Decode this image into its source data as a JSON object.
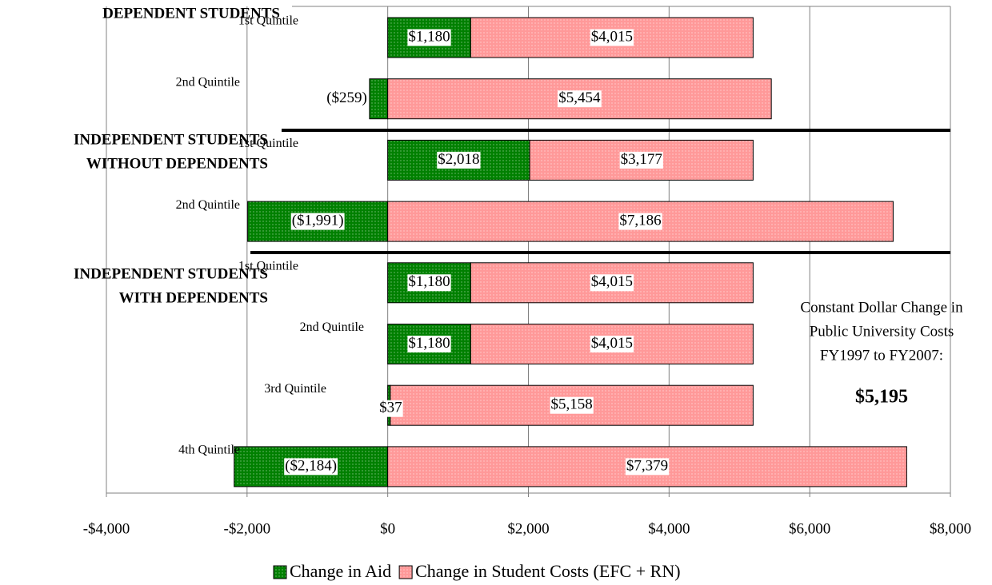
{
  "chart_data": {
    "type": "bar",
    "orientation": "horizontal",
    "stacked": true,
    "categories": [
      "1st Quintile",
      "2nd Quintile",
      "1st Quintile",
      "2nd Quintile",
      "1st Quintile",
      "2nd Quintile",
      "3rd Quintile",
      "4th Quintile"
    ],
    "groups": [
      {
        "label_lines": [
          "DEPENDENT STUDENTS"
        ],
        "start": 0
      },
      {
        "label_lines": [
          "INDEPENDENT STUDENTS",
          "WITHOUT DEPENDENTS"
        ],
        "start": 2
      },
      {
        "label_lines": [
          "INDEPENDENT STUDENTS",
          "WITH DEPENDENTS"
        ],
        "start": 4
      }
    ],
    "series": [
      {
        "name": "Change in Aid",
        "color": "#008000",
        "values": [
          1180,
          -259,
          2018,
          -1991,
          1180,
          1180,
          37,
          -2184
        ],
        "value_labels": [
          "$1,180",
          "($259)",
          "$2,018",
          "($1,991)",
          "$1,180",
          "$1,180",
          "$37",
          "($2,184)"
        ]
      },
      {
        "name": "Change in Student Costs (EFC + RN)",
        "color": "#ff9999",
        "values": [
          4015,
          5454,
          3177,
          7186,
          4015,
          4015,
          5158,
          7379
        ],
        "value_labels": [
          "$4,015",
          "$5,454",
          "$3,177",
          "$7,186",
          "$4,015",
          "$4,015",
          "$5,158",
          "$7,379"
        ]
      }
    ],
    "xlim": [
      -4000,
      8000
    ],
    "xticks": [
      {
        "value": -4000,
        "label": "-$4,000"
      },
      {
        "value": -2000,
        "label": "-$2,000"
      },
      {
        "value": 0,
        "label": "$0"
      },
      {
        "value": 2000,
        "label": "$2,000"
      },
      {
        "value": 4000,
        "label": "$4,000"
      },
      {
        "value": 6000,
        "label": "$6,000"
      },
      {
        "value": 8000,
        "label": "$8,000"
      }
    ],
    "grid": true,
    "legend": "bottom",
    "annotation": {
      "lines": [
        "Constant Dollar Change in",
        "Public University Costs",
        "FY1997 to FY2007:"
      ],
      "total": "$5,195"
    }
  }
}
